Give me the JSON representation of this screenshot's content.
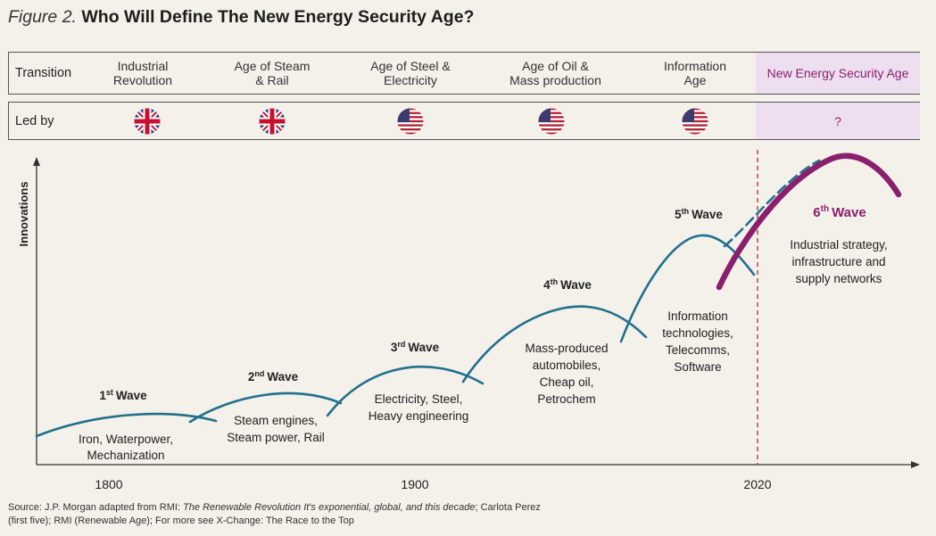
{
  "title": {
    "figure": "Figure 2.",
    "main": "Who Will Define The New Energy Security Age?"
  },
  "transition_row": {
    "label": "Transition",
    "cells": [
      "Industrial\nRevolution",
      "Age of Steam\n& Rail",
      "Age of Steel &\nElectricity",
      "Age of Oil &\nMass production",
      "Information\nAge",
      "New Energy Security Age"
    ]
  },
  "ledby_row": {
    "label": "Led by",
    "flags": [
      "uk",
      "uk",
      "us",
      "us",
      "us"
    ],
    "unknown": "?"
  },
  "chart": {
    "yaxis_label": "Innovations",
    "x_ticks": [
      "1800",
      "1900",
      "2020"
    ],
    "marker_year": "2020",
    "waves": [
      {
        "ordinal": "1",
        "suffix": "st",
        "word": "Wave",
        "desc": [
          "Iron, Waterpower,",
          "Mechanization"
        ]
      },
      {
        "ordinal": "2",
        "suffix": "nd",
        "word": "Wave",
        "desc": [
          "Steam engines,",
          "Steam power, Rail"
        ]
      },
      {
        "ordinal": "3",
        "suffix": "rd",
        "word": "Wave",
        "desc": [
          "Electricity, Steel,",
          "Heavy engineering"
        ]
      },
      {
        "ordinal": "4",
        "suffix": "th",
        "word": "Wave",
        "desc": [
          "Mass-produced",
          "automobiles,",
          "Cheap oil,",
          "Petrochem"
        ]
      },
      {
        "ordinal": "5",
        "suffix": "th",
        "word": "Wave",
        "desc": [
          "Information",
          "technologies,",
          "Telecomms,",
          "Software"
        ]
      },
      {
        "ordinal": "6",
        "suffix": "th",
        "word": "Wave",
        "desc": [
          "Industrial strategy,",
          "infrastructure and",
          "supply networks"
        ]
      }
    ]
  },
  "colors": {
    "wave": "#21708c",
    "sixth_wave": "#8a1f6b",
    "marker": "#c0203a",
    "highlight_bg": "#eddff0"
  },
  "footer": {
    "source_prefix": "Source: J.P. Morgan adapted from RMI: ",
    "source_italic": "The Renewable Revolution It's exponential, global, and this decade",
    "source_suffix": "; Carlota Perez (first five); RMI (Renewable Age); For more see X-Change: The Race to the Top"
  }
}
